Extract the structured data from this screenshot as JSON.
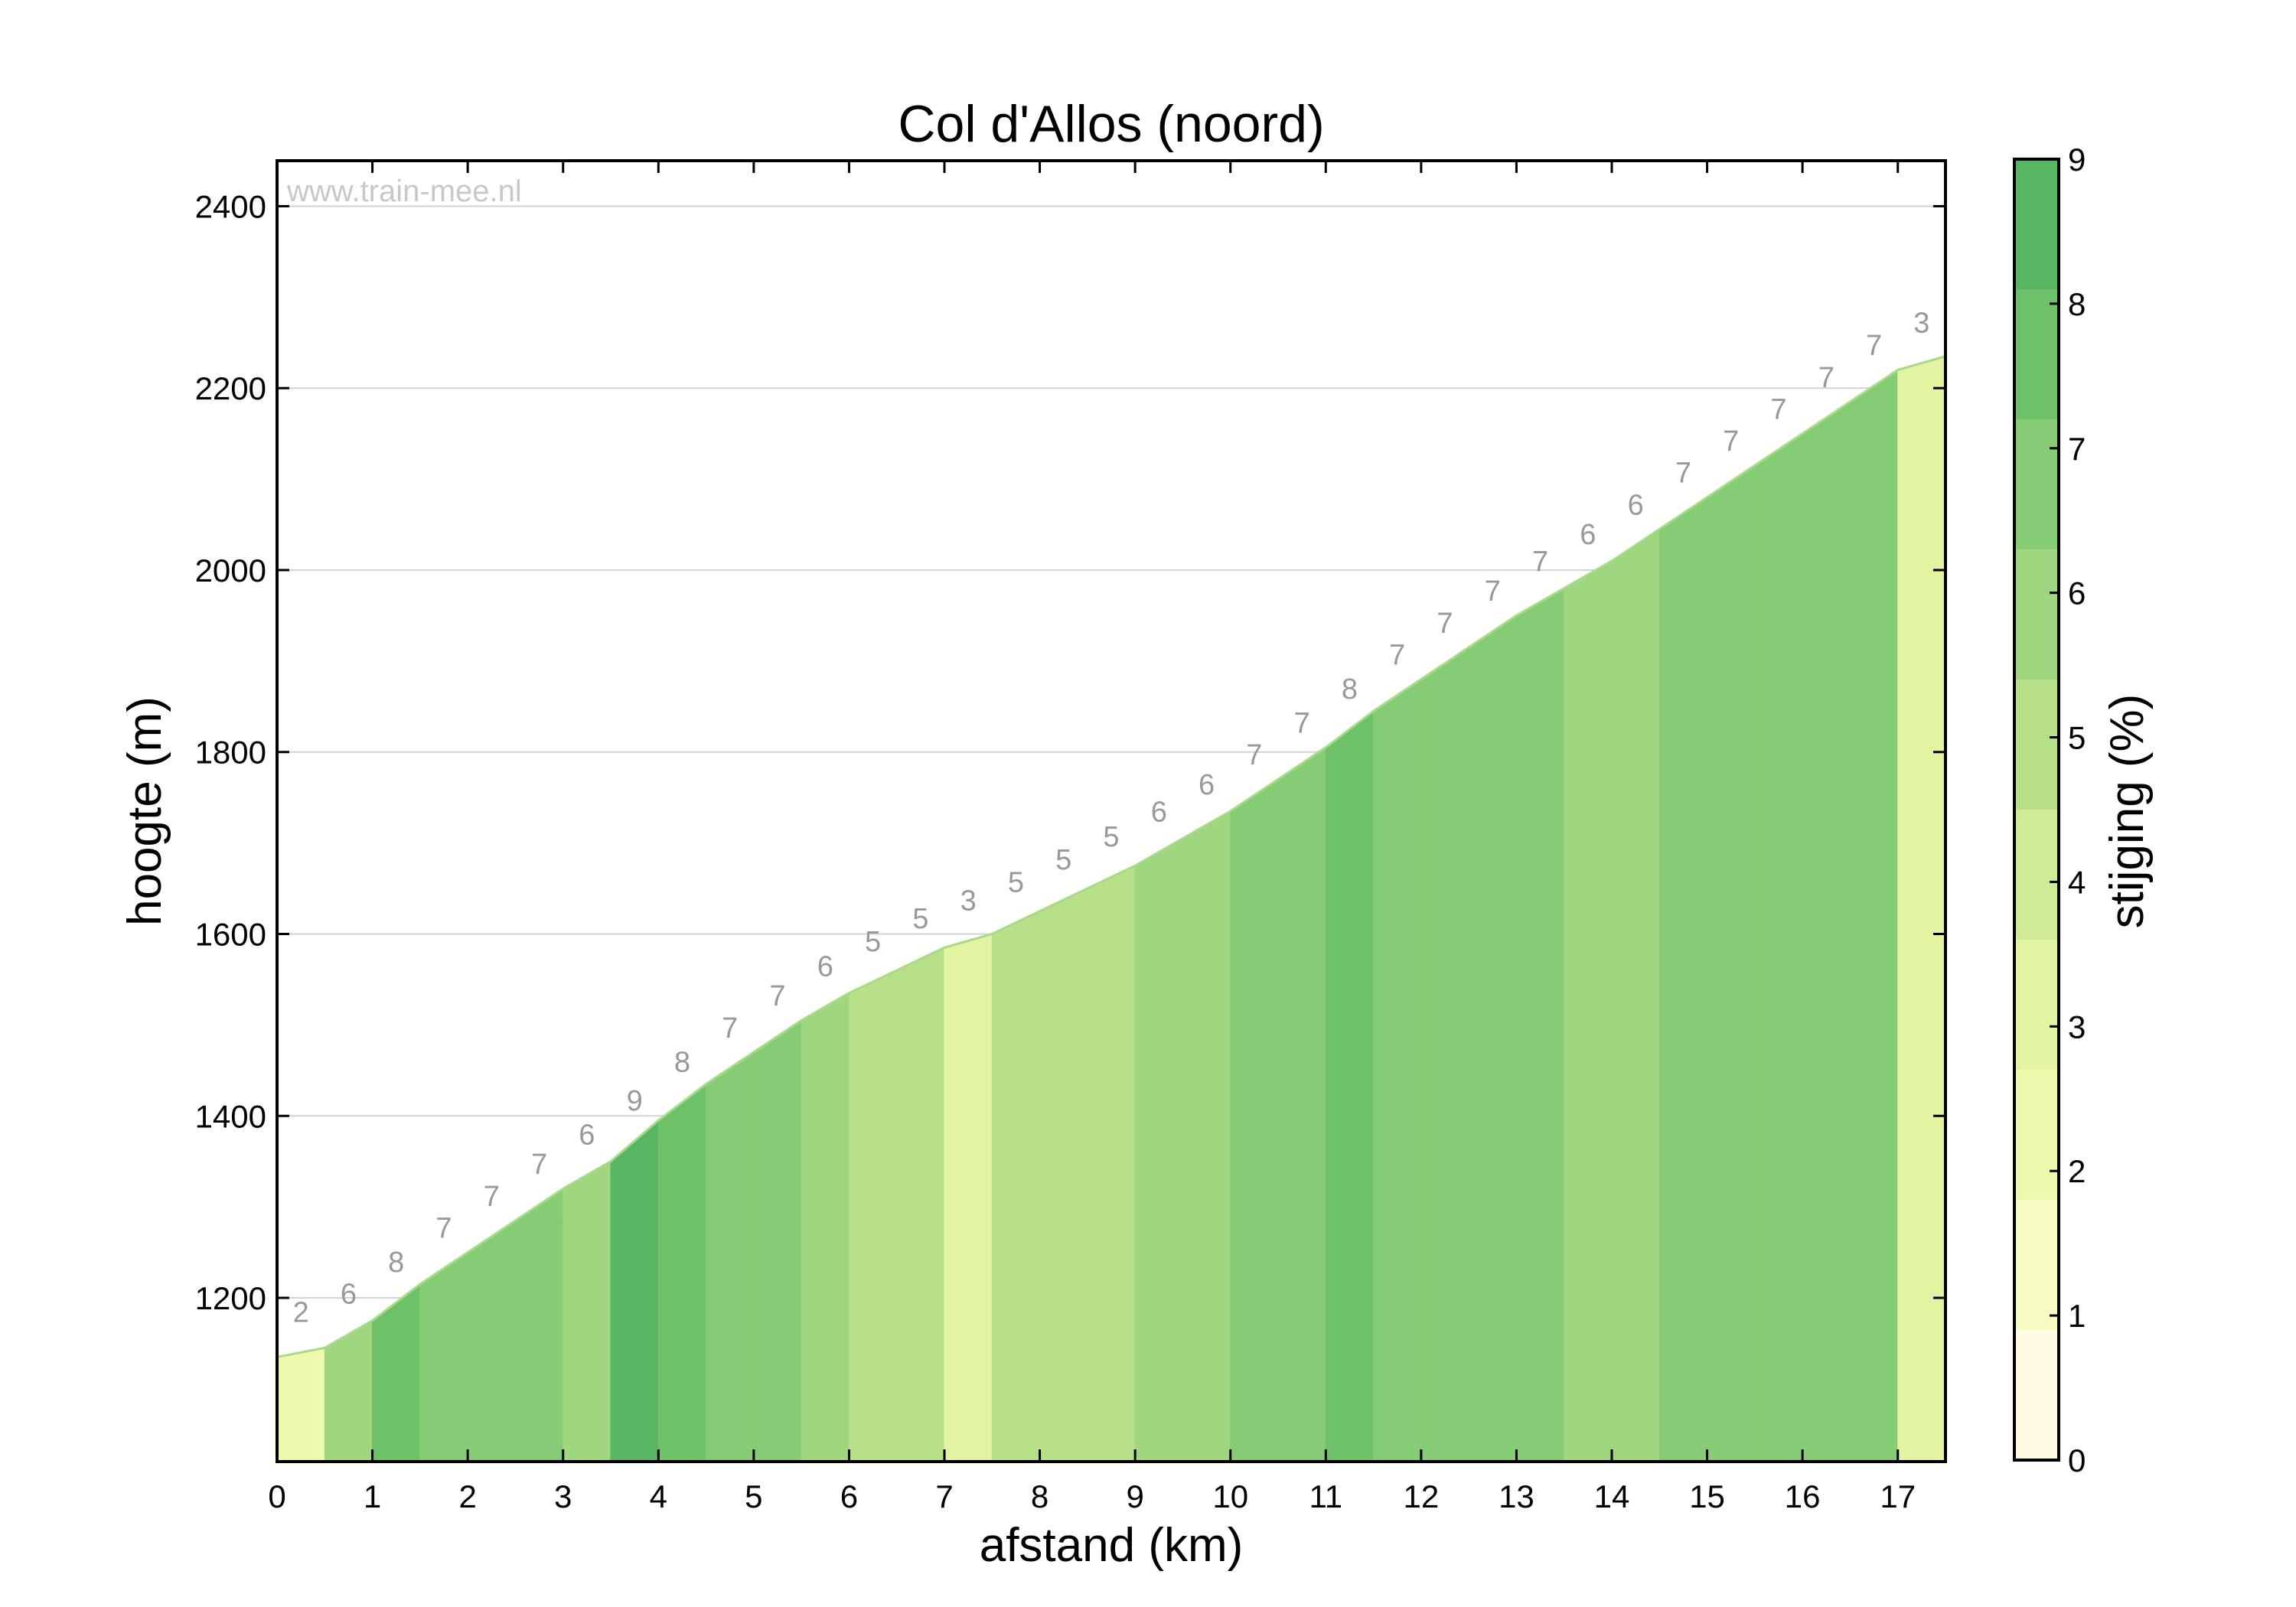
{
  "chart_data": {
    "type": "area",
    "title": "Col d'Allos (noord)",
    "watermark": "www.train-mee.nl",
    "xlabel": "afstand (km)",
    "ylabel": "hoogte (m)",
    "xlim": [
      0,
      17.5
    ],
    "ylim": [
      1020,
      2450
    ],
    "x_ticks": [
      "0",
      "1",
      "2",
      "3",
      "4",
      "5",
      "6",
      "7",
      "8",
      "9",
      "10",
      "11",
      "12",
      "13",
      "14",
      "15",
      "16",
      "17"
    ],
    "y_ticks": [
      "1200",
      "1400",
      "1600",
      "1800",
      "2000",
      "2200",
      "2400"
    ],
    "grid": true,
    "distance_km": [
      0,
      0.5,
      1,
      1.5,
      2,
      2.5,
      3,
      3.5,
      4,
      4.5,
      5,
      5.5,
      6,
      6.5,
      7,
      7.5,
      8,
      8.5,
      9,
      9.5,
      10,
      10.5,
      11,
      11.5,
      12,
      12.5,
      13,
      13.5,
      14,
      14.5,
      15,
      15.5,
      16,
      16.5,
      17,
      17.5
    ],
    "altitude_m": [
      1135,
      1145,
      1175,
      1215,
      1250,
      1285,
      1320,
      1350,
      1395,
      1435,
      1470,
      1505,
      1535,
      1560,
      1585,
      1600,
      1625,
      1650,
      1675,
      1705,
      1735,
      1770,
      1805,
      1845,
      1880,
      1915,
      1950,
      1980,
      2010,
      2045,
      2080,
      2115,
      2150,
      2185,
      2220,
      2235
    ],
    "segment_grades": [
      "2",
      "6",
      "8",
      "7",
      "7",
      "7",
      "6",
      "9",
      "8",
      "7",
      "7",
      "6",
      "5",
      "5",
      "3",
      "5",
      "5",
      "5",
      "6",
      "6",
      "7",
      "7",
      "8",
      "7",
      "7",
      "7",
      "7",
      "6",
      "6",
      "7",
      "7",
      "7",
      "7",
      "7",
      "3"
    ],
    "colorbar": {
      "label": "stijging (%)",
      "min": 0,
      "max": 9,
      "ticks": [
        "0",
        "1",
        "2",
        "3",
        "4",
        "5",
        "6",
        "7",
        "8",
        "9"
      ],
      "colors": [
        "#fefbe0",
        "#f7fbc2",
        "#eff9ad",
        "#e2f3a2",
        "#cfeb96",
        "#b7e189",
        "#9fd67f",
        "#86cc74",
        "#6ec169",
        "#58b562"
      ]
    }
  }
}
